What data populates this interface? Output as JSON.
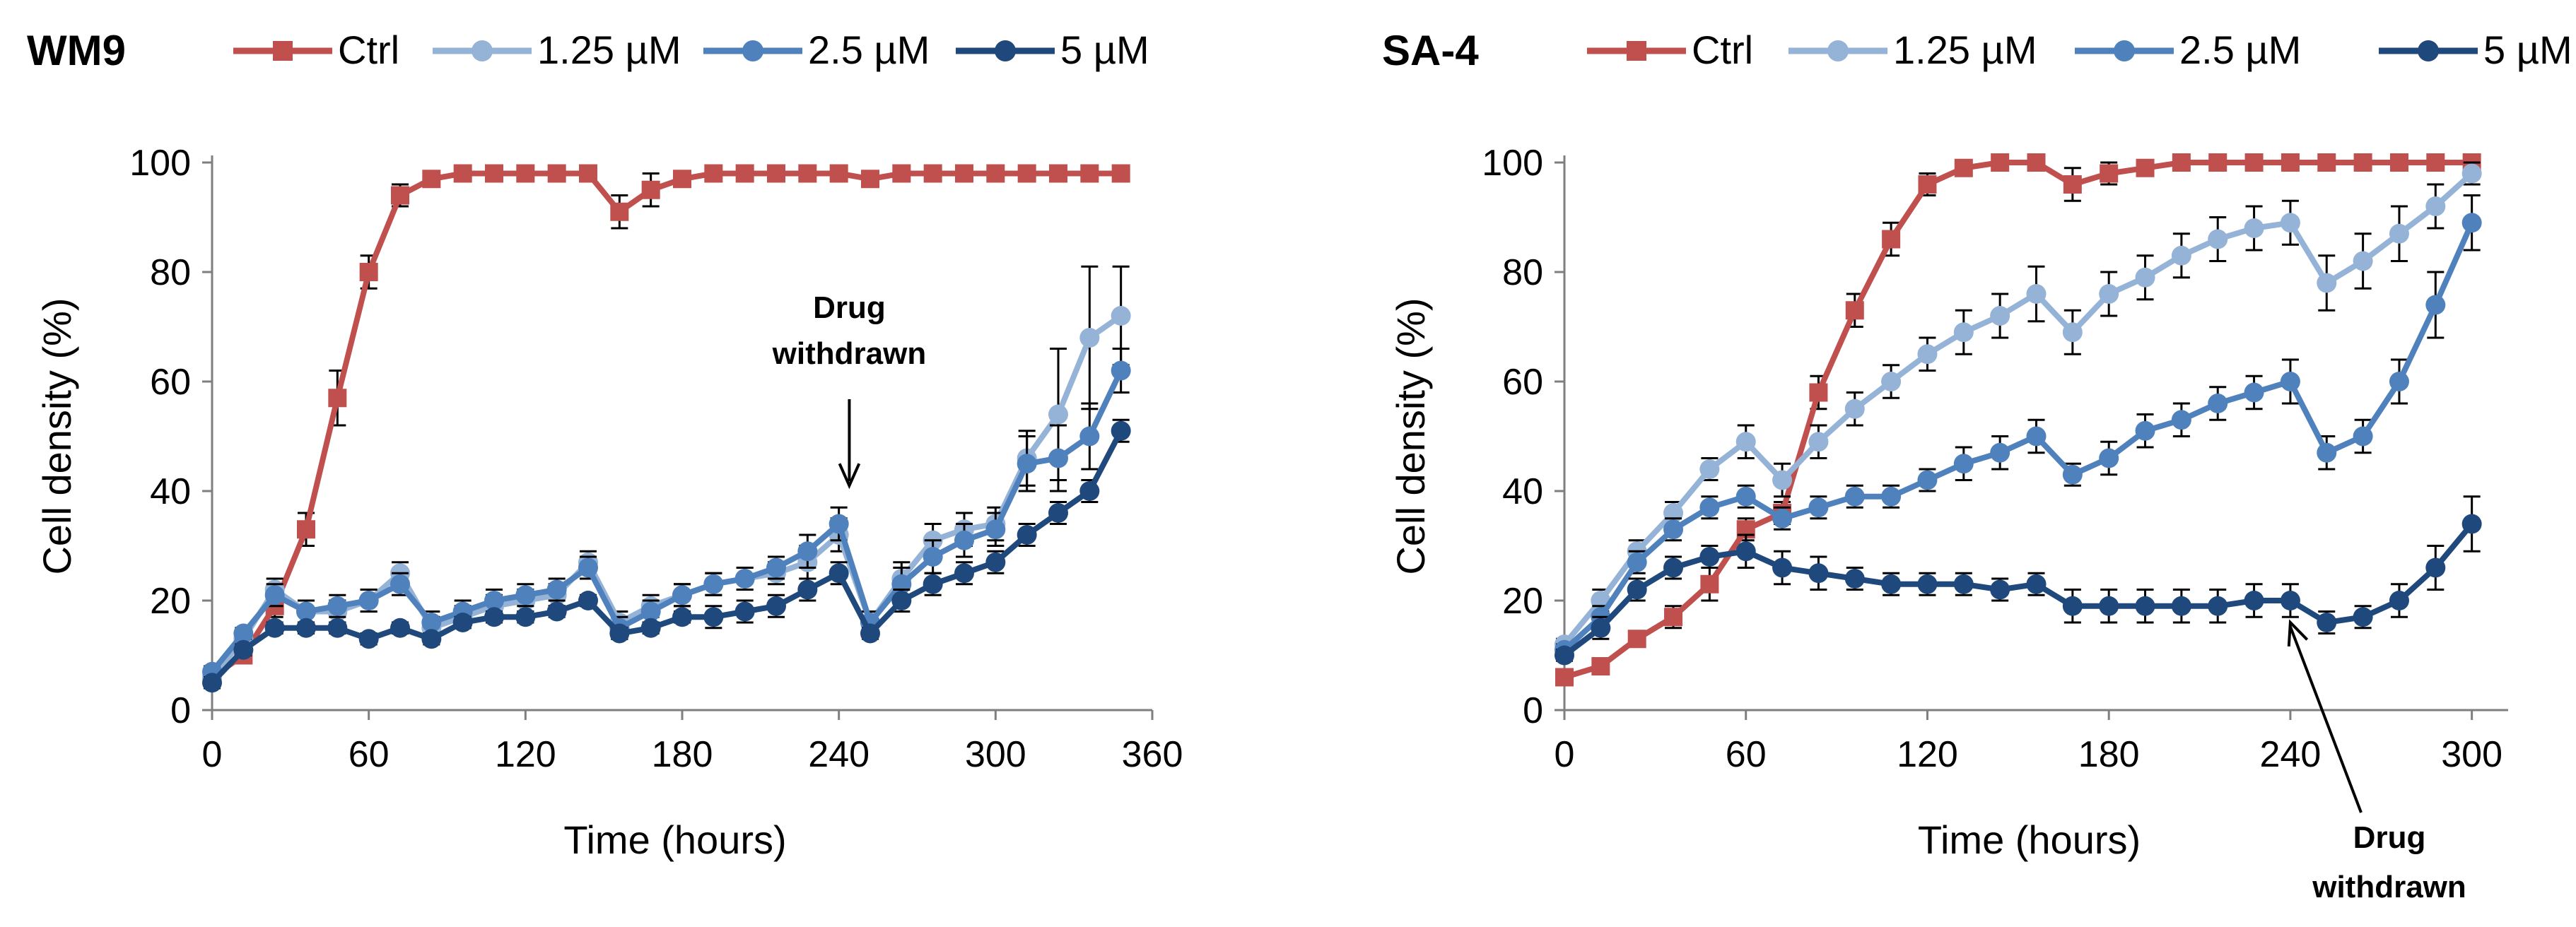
{
  "chart_data": [
    {
      "type": "line",
      "title": "WM9",
      "xlabel": "Time (hours)",
      "ylabel": "Cell density (%)",
      "xlim": [
        0,
        360
      ],
      "ylim": [
        0,
        100
      ],
      "xticks": [
        0,
        60,
        120,
        180,
        240,
        300,
        360
      ],
      "yticks": [
        0,
        20,
        40,
        60,
        80,
        100
      ],
      "annotation": {
        "lines": [
          "Drug",
          "withdrawn"
        ],
        "x": 244,
        "arrow_tip_y": 41,
        "label_position": "above"
      },
      "series": [
        {
          "name": "Ctrl",
          "color": "#c0504d",
          "marker": "square",
          "x": [
            0,
            12,
            24,
            36,
            48,
            60,
            72,
            84,
            96,
            108,
            120,
            132,
            144,
            156,
            168,
            180,
            192,
            204,
            216,
            228,
            240,
            252,
            264,
            276,
            288,
            300,
            312,
            324,
            336,
            348
          ],
          "y": [
            6,
            10,
            19,
            33,
            57,
            80,
            94,
            97,
            98,
            98,
            98,
            98,
            98,
            91,
            95,
            97,
            98,
            98,
            98,
            98,
            98,
            97,
            98,
            98,
            98,
            98,
            98,
            98,
            98,
            98
          ],
          "err": [
            1,
            1,
            2,
            3,
            5,
            3,
            2,
            1,
            1,
            1,
            1,
            1,
            1,
            3,
            3,
            1,
            1,
            1,
            1,
            1,
            1,
            1,
            1,
            1,
            1,
            1,
            1,
            1,
            1,
            1
          ]
        },
        {
          "name": "1.25 µM",
          "color": "#95b3d7",
          "marker": "circle",
          "x": [
            0,
            12,
            24,
            36,
            48,
            60,
            72,
            84,
            96,
            108,
            120,
            132,
            144,
            156,
            168,
            180,
            192,
            204,
            216,
            228,
            240,
            252,
            264,
            276,
            288,
            300,
            312,
            324,
            336,
            348
          ],
          "y": [
            6,
            13,
            22,
            18,
            18,
            20,
            25,
            15,
            17,
            19,
            20,
            21,
            27,
            16,
            19,
            21,
            23,
            24,
            25,
            27,
            32,
            16,
            24,
            31,
            33,
            34,
            46,
            54,
            68,
            72
          ],
          "err": [
            1,
            1,
            2,
            2,
            2,
            2,
            2,
            2,
            2,
            2,
            2,
            2,
            2,
            2,
            2,
            2,
            2,
            2,
            2,
            3,
            3,
            2,
            3,
            3,
            3,
            3,
            5,
            12,
            13,
            9
          ]
        },
        {
          "name": "2.5 µM",
          "color": "#4f81bd",
          "marker": "circle",
          "x": [
            0,
            12,
            24,
            36,
            48,
            60,
            72,
            84,
            96,
            108,
            120,
            132,
            144,
            156,
            168,
            180,
            192,
            204,
            216,
            228,
            240,
            252,
            264,
            276,
            288,
            300,
            312,
            324,
            336,
            348
          ],
          "y": [
            7,
            14,
            21,
            18,
            19,
            20,
            23,
            16,
            18,
            20,
            21,
            22,
            26,
            15,
            18,
            21,
            23,
            24,
            26,
            29,
            34,
            16,
            23,
            28,
            31,
            33,
            45,
            46,
            50,
            62
          ],
          "err": [
            1,
            1,
            2,
            2,
            2,
            2,
            2,
            2,
            2,
            2,
            2,
            2,
            2,
            2,
            2,
            2,
            2,
            2,
            2,
            3,
            3,
            2,
            3,
            3,
            3,
            3,
            5,
            6,
            6,
            4
          ]
        },
        {
          "name": "5 µM",
          "color": "#1f497d",
          "marker": "circle",
          "x": [
            0,
            12,
            24,
            36,
            48,
            60,
            72,
            84,
            96,
            108,
            120,
            132,
            144,
            156,
            168,
            180,
            192,
            204,
            216,
            228,
            240,
            252,
            264,
            276,
            288,
            300,
            312,
            324,
            336,
            348
          ],
          "y": [
            5,
            11,
            15,
            15,
            15,
            13,
            15,
            13,
            16,
            17,
            17,
            18,
            20,
            14,
            15,
            17,
            17,
            18,
            19,
            22,
            25,
            14,
            20,
            23,
            25,
            27,
            32,
            36,
            40,
            51
          ],
          "err": [
            1,
            1,
            1,
            1,
            1,
            1,
            1,
            1,
            1,
            1,
            1,
            1,
            1,
            1,
            1,
            1,
            2,
            2,
            2,
            2,
            2,
            1,
            2,
            2,
            2,
            2,
            2,
            2,
            2,
            2
          ]
        }
      ]
    },
    {
      "type": "line",
      "title": "SA-4",
      "xlabel": "Time (hours)",
      "ylabel": "Cell density (%)",
      "xlim": [
        0,
        312
      ],
      "ylim": [
        0,
        100
      ],
      "xticks": [
        0,
        60,
        120,
        180,
        240,
        300
      ],
      "yticks": [
        0,
        20,
        40,
        60,
        80,
        100
      ],
      "annotation": {
        "lines": [
          "Drug",
          "withdrawn"
        ],
        "x": 240,
        "arrow_tip_y": 16,
        "label_position": "below"
      },
      "series": [
        {
          "name": "Ctrl",
          "color": "#c0504d",
          "marker": "square",
          "x": [
            0,
            12,
            24,
            36,
            48,
            60,
            72,
            84,
            96,
            108,
            120,
            132,
            144,
            156,
            168,
            180,
            192,
            204,
            216,
            228,
            240,
            252,
            264,
            276,
            288,
            300
          ],
          "y": [
            6,
            8,
            13,
            17,
            23,
            33,
            36,
            58,
            73,
            86,
            96,
            99,
            100,
            100,
            96,
            98,
            99,
            100,
            100,
            100,
            100,
            100,
            100,
            100,
            100,
            100
          ],
          "err": [
            1,
            1,
            1,
            2,
            3,
            2,
            2,
            3,
            3,
            3,
            2,
            1,
            1,
            1,
            3,
            2,
            1,
            1,
            1,
            1,
            1,
            1,
            1,
            1,
            1,
            1
          ]
        },
        {
          "name": "1.25 µM",
          "color": "#95b3d7",
          "marker": "circle",
          "x": [
            0,
            12,
            24,
            36,
            48,
            60,
            72,
            84,
            96,
            108,
            120,
            132,
            144,
            156,
            168,
            180,
            192,
            204,
            216,
            228,
            240,
            252,
            264,
            276,
            288,
            300
          ],
          "y": [
            12,
            20,
            29,
            36,
            44,
            49,
            42,
            49,
            55,
            60,
            65,
            69,
            72,
            76,
            69,
            76,
            79,
            83,
            86,
            88,
            89,
            78,
            82,
            87,
            92,
            98
          ],
          "err": [
            1,
            2,
            2,
            2,
            2,
            3,
            3,
            3,
            3,
            3,
            3,
            4,
            4,
            5,
            4,
            4,
            4,
            4,
            4,
            4,
            4,
            5,
            5,
            5,
            4,
            2
          ]
        },
        {
          "name": "2.5 µM",
          "color": "#4f81bd",
          "marker": "circle",
          "x": [
            0,
            12,
            24,
            36,
            48,
            60,
            72,
            84,
            96,
            108,
            120,
            132,
            144,
            156,
            168,
            180,
            192,
            204,
            216,
            228,
            240,
            252,
            264,
            276,
            288,
            300
          ],
          "y": [
            11,
            17,
            27,
            33,
            37,
            39,
            35,
            37,
            39,
            39,
            42,
            45,
            47,
            50,
            43,
            46,
            51,
            53,
            56,
            58,
            60,
            47,
            50,
            60,
            74,
            89
          ],
          "err": [
            1,
            2,
            2,
            2,
            2,
            2,
            2,
            2,
            2,
            2,
            2,
            3,
            3,
            3,
            2,
            3,
            3,
            3,
            3,
            3,
            4,
            3,
            3,
            4,
            6,
            5
          ]
        },
        {
          "name": "5 µM",
          "color": "#1f497d",
          "marker": "circle",
          "x": [
            0,
            12,
            24,
            36,
            48,
            60,
            72,
            84,
            96,
            108,
            120,
            132,
            144,
            156,
            168,
            180,
            192,
            204,
            216,
            228,
            240,
            252,
            264,
            276,
            288,
            300
          ],
          "y": [
            10,
            15,
            22,
            26,
            28,
            29,
            26,
            25,
            24,
            23,
            23,
            23,
            22,
            23,
            19,
            19,
            19,
            19,
            19,
            20,
            20,
            16,
            17,
            20,
            26,
            34
          ],
          "err": [
            1,
            2,
            2,
            2,
            2,
            3,
            3,
            3,
            2,
            2,
            2,
            2,
            2,
            2,
            3,
            3,
            3,
            3,
            3,
            3,
            3,
            2,
            2,
            3,
            4,
            5
          ]
        }
      ]
    }
  ]
}
